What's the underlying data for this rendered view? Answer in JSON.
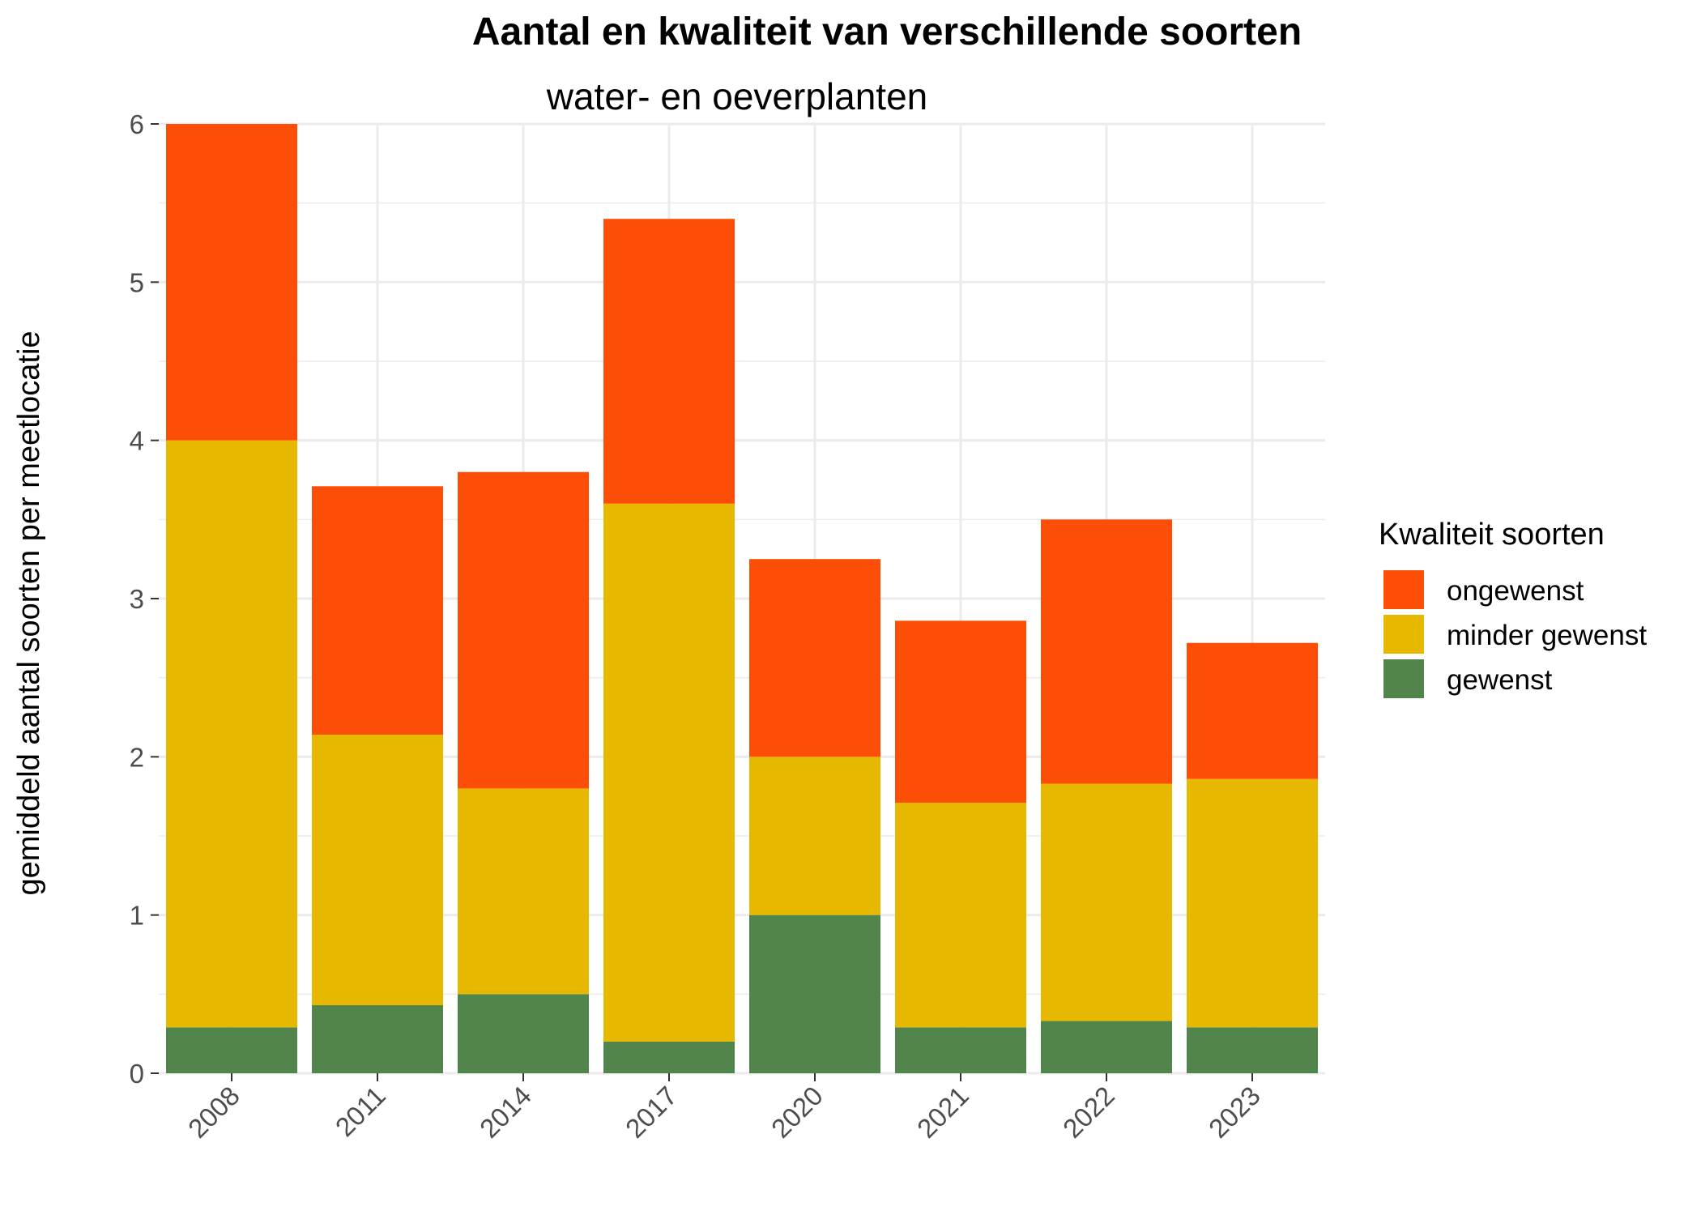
{
  "chart_data": {
    "type": "bar",
    "stacked": true,
    "title": "Aantal en kwaliteit van verschillende soorten",
    "subtitle": "water- en oeverplanten",
    "xlabel": "",
    "ylabel": "gemiddeld aantal soorten per meetlocatie",
    "ylim": [
      0,
      6
    ],
    "yticks": [
      0,
      1,
      2,
      3,
      4,
      5,
      6
    ],
    "grid": true,
    "categories": [
      "2008",
      "2011",
      "2014",
      "2017",
      "2020",
      "2021",
      "2022",
      "2023"
    ],
    "series": [
      {
        "name": "gewenst",
        "color": "#52854c",
        "values": [
          0.29,
          0.43,
          0.5,
          0.2,
          1.0,
          0.29,
          0.33,
          0.29
        ]
      },
      {
        "name": "minder gewenst",
        "color": "#e6b800",
        "values": [
          3.71,
          1.71,
          1.3,
          3.4,
          1.0,
          1.42,
          1.5,
          1.57
        ]
      },
      {
        "name": "ongewenst",
        "color": "#fc4e07",
        "values": [
          2.0,
          1.57,
          2.0,
          1.8,
          1.25,
          1.15,
          1.67,
          0.86
        ]
      }
    ],
    "legend": {
      "title": "Kwaliteit soorten",
      "position": "right",
      "order": [
        "ongewenst",
        "minder gewenst",
        "gewenst"
      ]
    }
  }
}
